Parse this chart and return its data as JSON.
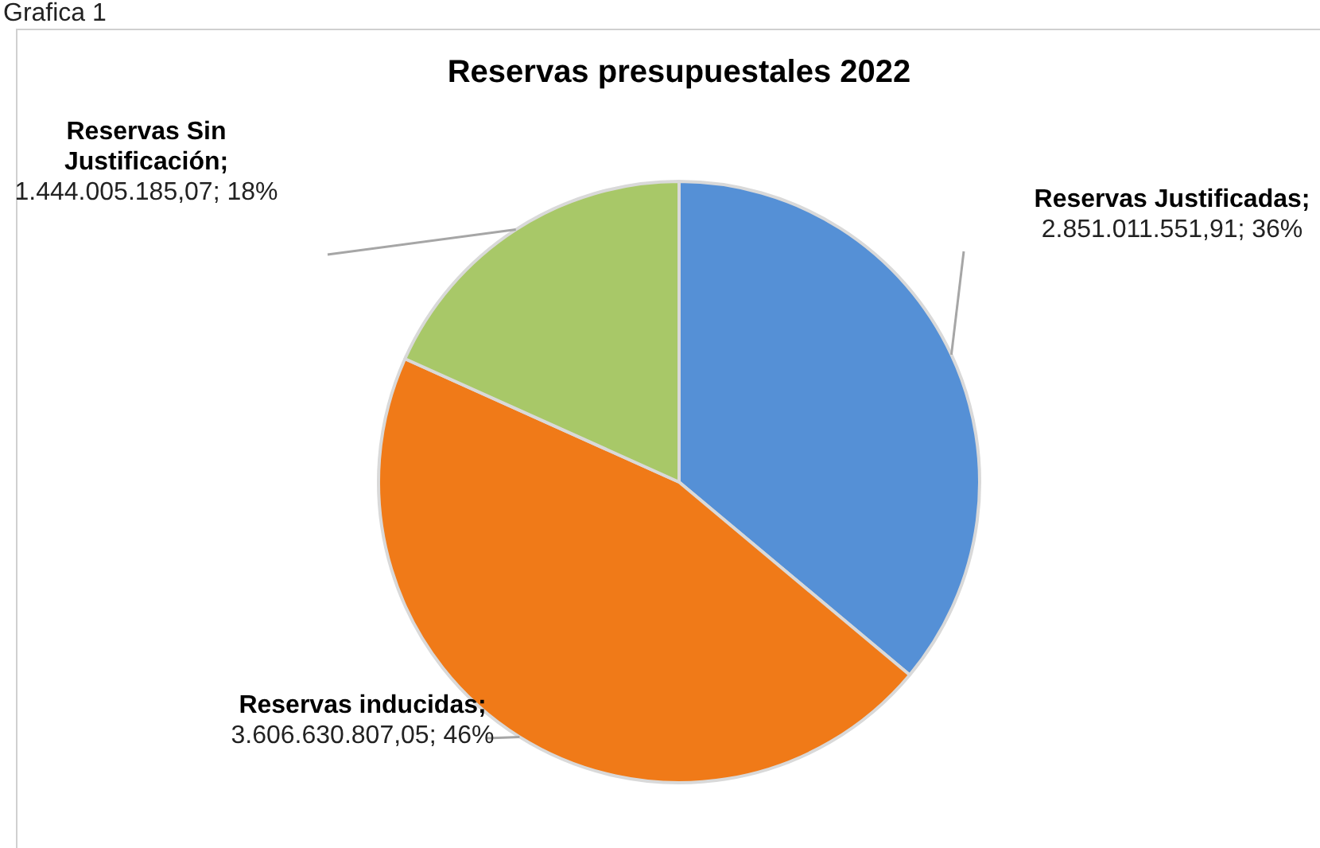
{
  "chart_data": {
    "type": "pie",
    "title": "Reservas presupuestales 2022",
    "categories": [
      "Reservas Justificadas",
      "Reservas inducidas",
      "Reservas Sin Justificación"
    ],
    "values": [
      2851011551.91,
      3606630807.05,
      1444005185.07
    ],
    "colors": [
      "#5590d6",
      "#f07a18",
      "#a8c868"
    ],
    "value_labels": [
      "; 2.851.011.551,91; 36%",
      "; 3.606.630.807,05; 46%",
      "; 1.444.005.185,07; 18%"
    ],
    "annotations": [
      "Grafica 1"
    ],
    "legend": false
  }
}
